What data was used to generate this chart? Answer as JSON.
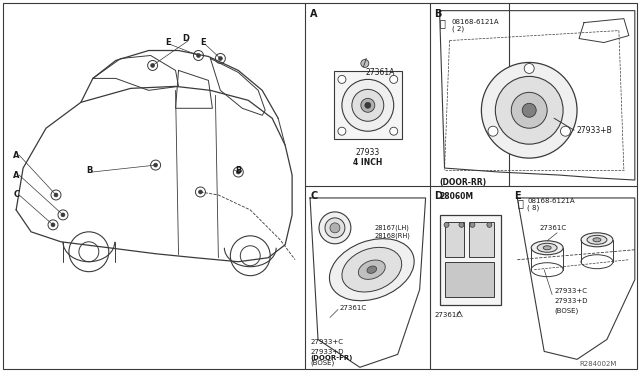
{
  "bg_color": "#ffffff",
  "lc": "#3a3a3a",
  "tc": "#1a1a1a",
  "fig_w": 6.4,
  "fig_h": 3.72,
  "part_numbers": {
    "27361A": "27361A",
    "27933": "27933",
    "27933B": "27933+B",
    "08168_6121A_2": "08168-6121A\n( 2)",
    "08168_6121A_8": "08168-6121A\n( 8)",
    "27933C": "27933+C",
    "27933D_bose": "27933+D\n(BOSE)",
    "28167LH": "28167(LH)",
    "28168RH": "28168(RH)",
    "27361C_fr": "27361C",
    "27361C_d": "27361C",
    "28060M": "28060M",
    "R284002M": "R284002M"
  },
  "labels": {
    "4inch": "4 INCH",
    "door_rr": "(DOOR-RR)",
    "door_fr": "(DOOR-FR)"
  },
  "dividers": {
    "vert_main": 305,
    "horiz_mid": 186,
    "vert_ab": 430,
    "vert_de": 510
  }
}
